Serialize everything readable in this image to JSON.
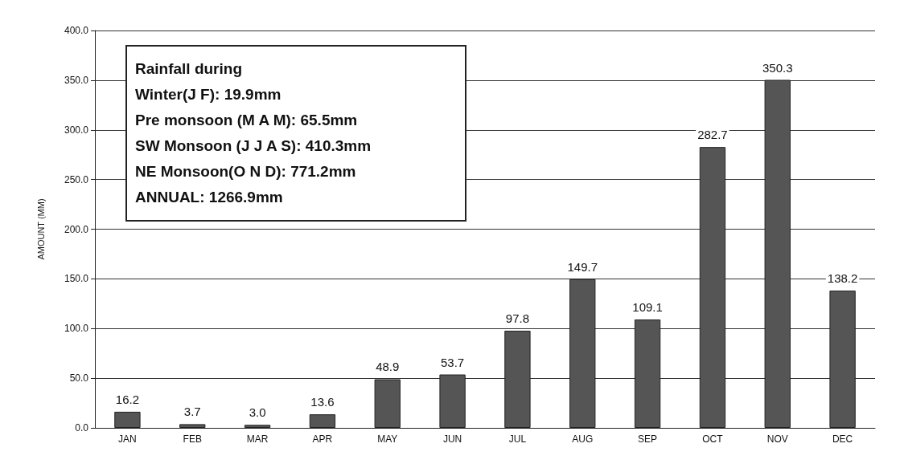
{
  "chart_data": {
    "type": "bar",
    "ylabel": "AMOUNT (MM)",
    "categories": [
      "JAN",
      "FEB",
      "MAR",
      "APR",
      "MAY",
      "JUN",
      "JUL",
      "AUG",
      "SEP",
      "OCT",
      "NOV",
      "DEC"
    ],
    "values": [
      16.2,
      3.7,
      3.0,
      13.6,
      48.9,
      53.7,
      97.8,
      149.7,
      109.1,
      282.7,
      350.3,
      138.2
    ],
    "value_labels": [
      "16.2",
      "3.7",
      "3.0",
      "13.6",
      "48.9",
      "53.7",
      "97.8",
      "149.7",
      "109.1",
      "282.7",
      "350.3",
      "138.2"
    ],
    "color": "#555555",
    "ylim": [
      0,
      400
    ],
    "yticks": [
      {
        "value": 0,
        "label": "0.0"
      },
      {
        "value": 50,
        "label": "50.0"
      },
      {
        "value": 100,
        "label": "100.0"
      },
      {
        "value": 150,
        "label": "150.0"
      },
      {
        "value": 200,
        "label": "200.0"
      },
      {
        "value": 250,
        "label": "250.0"
      },
      {
        "value": 300,
        "label": "300.0"
      },
      {
        "value": 350,
        "label": "350.0"
      },
      {
        "value": 400,
        "label": "400.0"
      }
    ],
    "grid": "y",
    "annotations": [
      "Rainfall during",
      "Winter(J F): 19.9mm",
      "Pre monsoon (M A M): 65.5mm",
      "SW Monsoon (J J A S): 410.3mm",
      "NE Monsoon(O N D): 771.2mm",
      "ANNUAL: 1266.9mm"
    ]
  }
}
